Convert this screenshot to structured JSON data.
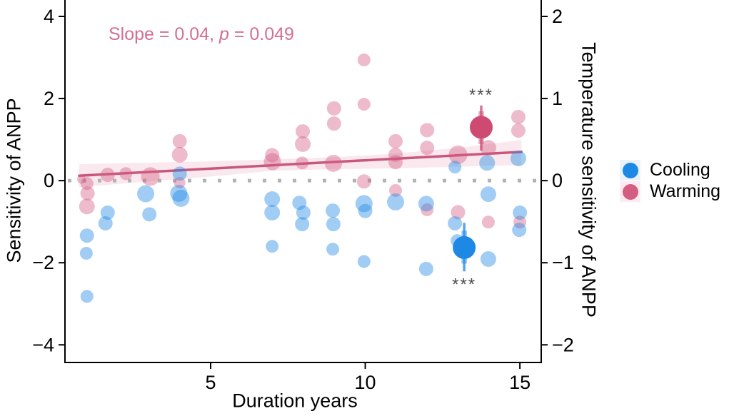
{
  "chart_data": {
    "type": "scatter",
    "description": "Effect of experiment duration on ANPP sensitivity under cooling and warming treatments",
    "annotation": {
      "prefix": "Slope = 0.04, ",
      "p_symbol": "p",
      "suffix": " = 0.049",
      "color": "#d4708f"
    },
    "x_axis": {
      "label": "Duration years",
      "ticks": [
        {
          "v": 5,
          "t": "5"
        },
        {
          "v": 10,
          "t": "10"
        },
        {
          "v": 15,
          "t": "15"
        }
      ],
      "range": [
        0.29,
        15.69
      ]
    },
    "y_axis_left": {
      "label": "Sensitivity of ANPP",
      "ticks": [
        {
          "v": 4,
          "t": "4"
        },
        {
          "v": 2,
          "t": "2"
        },
        {
          "v": 0,
          "t": "0"
        },
        {
          "v": -2,
          "t": "−2"
        },
        {
          "v": -4,
          "t": "−4"
        }
      ],
      "range": [
        -4.43,
        4.4
      ]
    },
    "y_axis_right": {
      "label": "Temperature sensitivity of ANPP",
      "ticks": [
        {
          "v": 4,
          "t": "2"
        },
        {
          "v": 2,
          "t": "1"
        },
        {
          "v": 0,
          "t": "0"
        },
        {
          "v": -2,
          "t": "−1"
        },
        {
          "v": -4,
          "t": "−2"
        }
      ],
      "relation": "right axis = left axis / 2"
    },
    "zero_line": {
      "y": 0,
      "style": "dotted",
      "color": "#b3b3b3"
    },
    "regression": {
      "slope": 0.04,
      "p_value": 0.049,
      "line_color": "#c9567c",
      "x_start": 0.75,
      "y_start": 0.12,
      "x_end": 15.05,
      "y_end": 0.7,
      "ribbon": {
        "x": [
          0.75,
          3.0,
          5.0,
          7.0,
          9.0,
          11.0,
          13.0,
          15.05
        ],
        "upper": [
          0.4,
          0.44,
          0.47,
          0.52,
          0.57,
          0.66,
          0.8,
          0.99
        ],
        "lower": [
          -0.16,
          -0.02,
          0.1,
          0.24,
          0.28,
          0.3,
          0.34,
          0.38
        ]
      }
    },
    "series": [
      {
        "name": "Warming",
        "color": "#d45d82",
        "strong_color": "#ce4a73",
        "alpha": 0.42,
        "legend_key_bg": "#fcebf1",
        "points": [
          {
            "x": 0.82,
            "y": 0.03,
            "r": 6
          },
          {
            "x": 1.0,
            "y": -0.07,
            "r": 9
          },
          {
            "x": 1.02,
            "y": -0.31,
            "r": 10
          },
          {
            "x": 1.0,
            "y": -0.63,
            "r": 11
          },
          {
            "x": 1.67,
            "y": 0.14,
            "r": 10
          },
          {
            "x": 2.26,
            "y": 0.17,
            "r": 9
          },
          {
            "x": 3.05,
            "y": 0.1,
            "r": 13
          },
          {
            "x": 4.0,
            "y": 0.96,
            "r": 10
          },
          {
            "x": 4.0,
            "y": 0.63,
            "r": 11
          },
          {
            "x": 4.0,
            "y": -0.05,
            "r": 8
          },
          {
            "x": 6.99,
            "y": 0.62,
            "r": 10
          },
          {
            "x": 7.0,
            "y": 0.46,
            "r": 12
          },
          {
            "x": 7.98,
            "y": 1.2,
            "r": 10
          },
          {
            "x": 7.98,
            "y": 0.89,
            "r": 11
          },
          {
            "x": 7.96,
            "y": 0.43,
            "r": 9
          },
          {
            "x": 8.99,
            "y": 1.76,
            "r": 10
          },
          {
            "x": 8.99,
            "y": 1.39,
            "r": 10
          },
          {
            "x": 8.97,
            "y": 0.42,
            "r": 12
          },
          {
            "x": 9.96,
            "y": 2.94,
            "r": 9
          },
          {
            "x": 9.96,
            "y": 1.86,
            "r": 9
          },
          {
            "x": 9.96,
            "y": -0.02,
            "r": 10
          },
          {
            "x": 10.98,
            "y": 0.96,
            "r": 10
          },
          {
            "x": 10.98,
            "y": 0.63,
            "r": 10
          },
          {
            "x": 10.98,
            "y": 0.45,
            "r": 10
          },
          {
            "x": 10.98,
            "y": -0.24,
            "r": 9
          },
          {
            "x": 12.0,
            "y": 1.23,
            "r": 10
          },
          {
            "x": 12.0,
            "y": 0.8,
            "r": 10
          },
          {
            "x": 12.0,
            "y": -0.71,
            "r": 9
          },
          {
            "x": 13.0,
            "y": 0.63,
            "r": 13
          },
          {
            "x": 13.0,
            "y": -0.77,
            "r": 10
          },
          {
            "x": 13.98,
            "y": 0.8,
            "r": 11
          },
          {
            "x": 13.98,
            "y": -1.01,
            "r": 9
          },
          {
            "x": 14.95,
            "y": 1.55,
            "r": 10
          },
          {
            "x": 14.95,
            "y": 1.22,
            "r": 10
          },
          {
            "x": 15.0,
            "y": -1.01,
            "r": 9
          }
        ],
        "summary": {
          "x": 13.75,
          "mean": 1.3,
          "ci95": [
            0.73,
            1.83
          ],
          "ci50": [
            0.89,
            1.69
          ],
          "r": 16,
          "sig": "***",
          "sig_side": "above"
        }
      },
      {
        "name": "Cooling",
        "color": "#1e88e5",
        "strong_color": "#1e88e5",
        "alpha": 0.42,
        "legend_key_bg": "#eaf2fb",
        "points": [
          {
            "x": 1.0,
            "y": -1.34,
            "r": 10
          },
          {
            "x": 0.98,
            "y": -1.77,
            "r": 9
          },
          {
            "x": 1.0,
            "y": -2.82,
            "r": 9
          },
          {
            "x": 1.67,
            "y": -0.78,
            "r": 10
          },
          {
            "x": 1.6,
            "y": -1.04,
            "r": 10
          },
          {
            "x": 2.9,
            "y": -0.32,
            "r": 12
          },
          {
            "x": 3.02,
            "y": -0.82,
            "r": 10
          },
          {
            "x": 4.0,
            "y": 0.17,
            "r": 10
          },
          {
            "x": 3.97,
            "y": -0.31,
            "r": 12
          },
          {
            "x": 4.04,
            "y": -0.43,
            "r": 12
          },
          {
            "x": 6.99,
            "y": -0.45,
            "r": 11
          },
          {
            "x": 6.99,
            "y": -0.78,
            "r": 11
          },
          {
            "x": 6.99,
            "y": -1.6,
            "r": 9
          },
          {
            "x": 7.87,
            "y": -0.54,
            "r": 10
          },
          {
            "x": 8.0,
            "y": -0.78,
            "r": 10
          },
          {
            "x": 7.96,
            "y": -1.06,
            "r": 10
          },
          {
            "x": 8.95,
            "y": -0.73,
            "r": 10
          },
          {
            "x": 8.97,
            "y": -1.06,
            "r": 10
          },
          {
            "x": 8.95,
            "y": -1.67,
            "r": 9
          },
          {
            "x": 9.96,
            "y": -0.56,
            "r": 12
          },
          {
            "x": 10.0,
            "y": -0.74,
            "r": 10
          },
          {
            "x": 9.96,
            "y": -1.97,
            "r": 9
          },
          {
            "x": 10.98,
            "y": -0.52,
            "r": 12
          },
          {
            "x": 11.97,
            "y": -0.56,
            "r": 11
          },
          {
            "x": 11.97,
            "y": -2.15,
            "r": 10
          },
          {
            "x": 12.9,
            "y": 0.33,
            "r": 9
          },
          {
            "x": 12.9,
            "y": -1.04,
            "r": 10
          },
          {
            "x": 12.97,
            "y": -1.46,
            "r": 9
          },
          {
            "x": 13.94,
            "y": 0.43,
            "r": 11
          },
          {
            "x": 13.98,
            "y": -0.33,
            "r": 11
          },
          {
            "x": 13.98,
            "y": -1.91,
            "r": 11
          },
          {
            "x": 14.95,
            "y": 0.54,
            "r": 11
          },
          {
            "x": 15.0,
            "y": -0.78,
            "r": 10
          },
          {
            "x": 14.98,
            "y": -1.2,
            "r": 10
          }
        ],
        "summary": {
          "x": 13.2,
          "mean": -1.63,
          "ci95": [
            -2.21,
            -1.03
          ],
          "ci50": [
            -2.02,
            -1.22
          ],
          "r": 16,
          "sig": "***",
          "sig_side": "below"
        }
      }
    ],
    "legend": {
      "position": "right-middle",
      "items": [
        {
          "label": "Cooling"
        },
        {
          "label": "Warming"
        }
      ]
    },
    "sig_color": "#4d4d4d",
    "axis_color": "#000000"
  }
}
